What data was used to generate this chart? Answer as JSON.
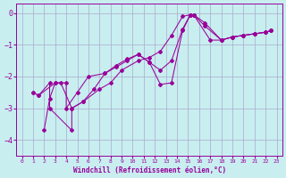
{
  "xlabel": "Windchill (Refroidissement éolien,°C)",
  "background_color": "#c8eef0",
  "line_color": "#990099",
  "grid_color": "#aaaacc",
  "xlim": [
    -0.5,
    23.5
  ],
  "ylim": [
    -4.5,
    0.3
  ],
  "yticks": [
    0,
    -1,
    -2,
    -3,
    -4
  ],
  "xticks": [
    0,
    1,
    2,
    3,
    4,
    5,
    6,
    7,
    8,
    9,
    10,
    11,
    12,
    13,
    14,
    15,
    16,
    17,
    18,
    19,
    20,
    21,
    22,
    23
  ],
  "curve1_x": [
    1.0,
    1.5,
    3.0,
    3.5,
    4.5,
    5.5,
    6.5,
    7.5,
    8.5,
    9.5,
    10.5,
    11.5,
    12.5,
    13.5,
    14.5,
    15.2,
    15.5,
    16.5,
    18.0,
    19.0,
    20.0,
    21.0,
    22.0,
    22.5
  ],
  "curve1_y": [
    -2.5,
    -2.6,
    -2.2,
    -2.2,
    -3.0,
    -2.8,
    -2.4,
    -1.9,
    -1.7,
    -1.5,
    -1.3,
    -1.55,
    -2.25,
    -2.2,
    -0.55,
    -0.05,
    -0.05,
    -0.3,
    -0.85,
    -0.75,
    -0.7,
    -0.65,
    -0.6,
    -0.55
  ],
  "curve2_x": [
    1.0,
    1.5,
    2.5,
    2.5,
    4.5,
    4.5,
    5.5,
    7.0,
    8.0,
    9.0,
    10.5,
    11.5,
    12.5,
    13.5,
    14.5,
    15.2,
    15.5,
    17.0,
    18.0,
    19.0,
    20.0,
    21.0,
    22.0,
    22.5
  ],
  "curve2_y": [
    -2.5,
    -2.6,
    -2.2,
    -3.0,
    -3.7,
    -3.0,
    -2.8,
    -2.4,
    -2.2,
    -1.8,
    -1.5,
    -1.4,
    -1.2,
    -0.7,
    -0.1,
    -0.05,
    -0.05,
    -0.85,
    -0.85,
    -0.75,
    -0.7,
    -0.65,
    -0.6,
    -0.55
  ],
  "curve3_x": [
    2.0,
    2.5,
    3.0,
    4.0,
    4.0,
    5.0,
    6.0,
    7.5,
    8.5,
    9.5,
    10.5,
    11.5,
    12.5,
    13.5,
    14.5,
    15.2,
    15.5,
    16.5,
    18.0,
    19.0,
    20.0,
    21.0,
    22.0,
    22.5
  ],
  "curve3_y": [
    -3.7,
    -2.7,
    -2.2,
    -2.2,
    -3.0,
    -2.5,
    -2.0,
    -1.9,
    -1.65,
    -1.45,
    -1.3,
    -1.55,
    -1.8,
    -1.5,
    -0.5,
    -0.05,
    -0.05,
    -0.4,
    -0.85,
    -0.75,
    -0.7,
    -0.65,
    -0.6,
    -0.55
  ]
}
